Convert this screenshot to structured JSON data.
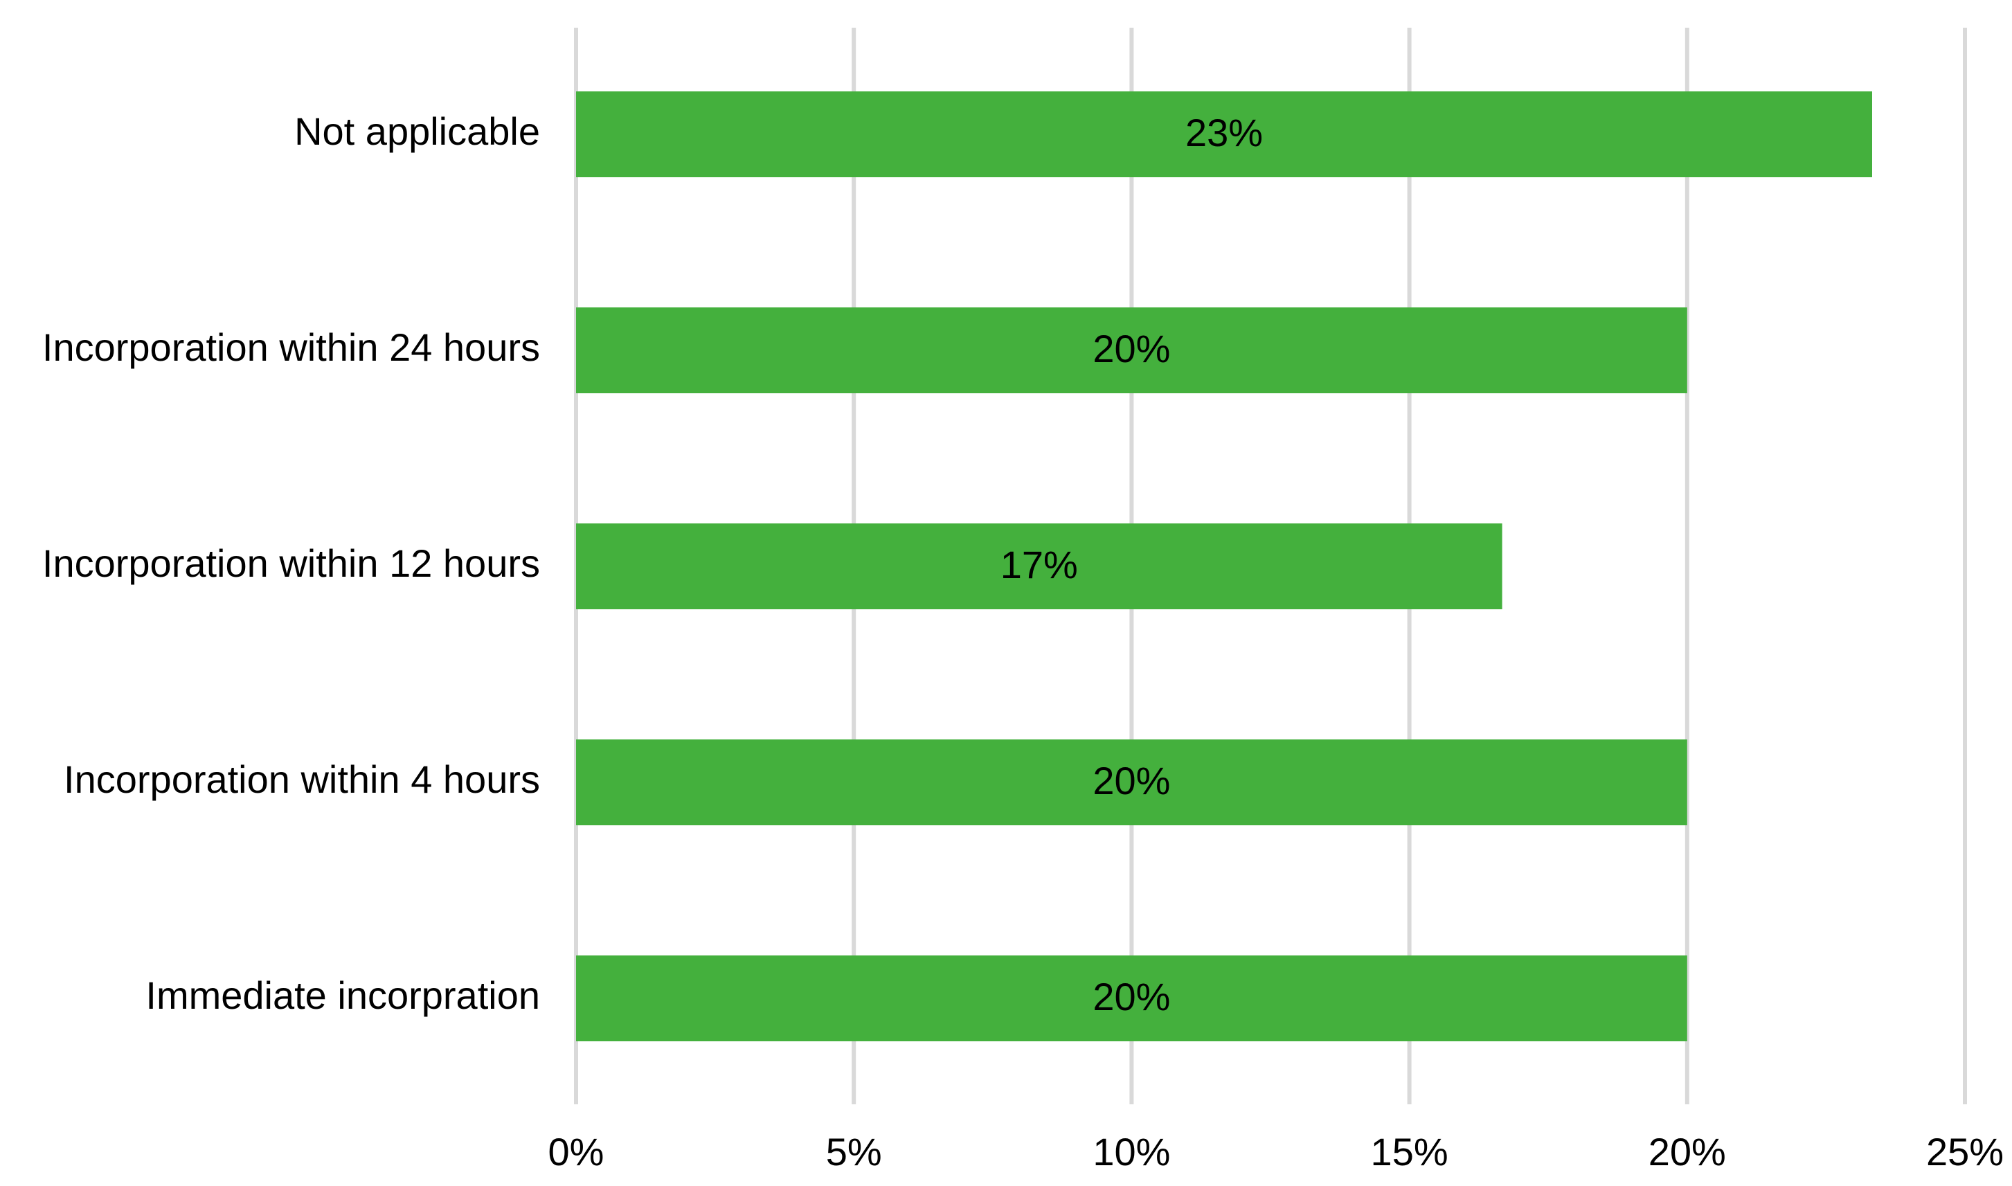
{
  "chart_data": {
    "type": "bar",
    "orientation": "horizontal",
    "categories": [
      "Not applicable",
      "Incorporation within 24 hours",
      "Incorporation within 12 hours",
      "Incorporation within 4 hours",
      "Immediate incorpration"
    ],
    "values": [
      23.33,
      20,
      16.67,
      20,
      20
    ],
    "data_labels": [
      "23%",
      "20%",
      "17%",
      "20%",
      "20%"
    ],
    "xticks": [
      "0%",
      "5%",
      "10%",
      "15%",
      "20%",
      "25%"
    ],
    "xtick_values": [
      0,
      5,
      10,
      15,
      20,
      25
    ],
    "xlim": [
      0,
      25
    ],
    "title": "",
    "xlabel": "",
    "ylabel": "",
    "grid": "vertical",
    "legend": "none",
    "bar_color": "#44b03d",
    "grid_color": "#d9d9d9"
  }
}
